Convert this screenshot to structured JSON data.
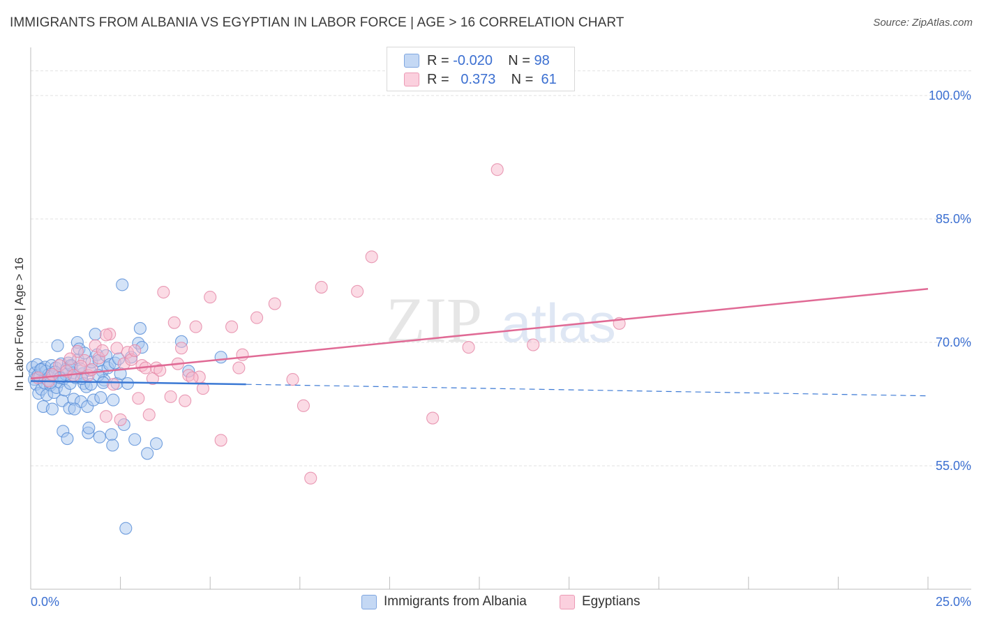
{
  "title": "IMMIGRANTS FROM ALBANIA VS EGYPTIAN IN LABOR FORCE | AGE > 16 CORRELATION CHART",
  "source": "Source: ZipAtlas.com",
  "watermark": {
    "zip": "ZIP",
    "atlas": "atlas"
  },
  "legend_stats": [
    {
      "r_label": "R =",
      "r_value": "-0.020",
      "n_label": "N =",
      "n_value": "98",
      "color": "#aac8f0"
    },
    {
      "r_label": "R =",
      "r_value": "0.373",
      "n_label": "N =",
      "n_value": "61",
      "color": "#f7b8cc"
    }
  ],
  "bottom_legend": [
    {
      "label": "Immigrants from Albania",
      "color": "#aac8f0"
    },
    {
      "label": "Egyptians",
      "color": "#f7b8cc"
    }
  ],
  "chart_data": {
    "type": "scatter",
    "xlabel": "",
    "ylabel": "In Labor Force | Age > 16",
    "xlim": [
      0,
      25
    ],
    "ylim": [
      40,
      105
    ],
    "x_tick_labels": [
      "0.0%",
      "25.0%"
    ],
    "y_ticks": [
      55,
      70,
      85,
      100
    ],
    "y_tick_labels": [
      "55.0%",
      "70.0%",
      "85.0%",
      "100.0%"
    ],
    "grid": true,
    "legend_placement": "top-center",
    "colors": {
      "albania_fill": "#aac8f0",
      "albania_stroke": "#5a8fd8",
      "albania_line": "#3a78d4",
      "egypt_fill": "#f7b8cc",
      "egypt_stroke": "#e58aa8",
      "egypt_line": "#e06a95"
    },
    "series": [
      {
        "name": "Immigrants from Albania",
        "trend": {
          "x": [
            0,
            6,
            25
          ],
          "y": [
            65.3,
            64.9,
            63.5
          ],
          "solid_until": 6
        },
        "points": [
          [
            0.05,
            67.0
          ],
          [
            0.1,
            65.5
          ],
          [
            0.12,
            66.3
          ],
          [
            0.15,
            64.9
          ],
          [
            0.18,
            67.3
          ],
          [
            0.2,
            66.0
          ],
          [
            0.22,
            63.8
          ],
          [
            0.25,
            65.8
          ],
          [
            0.3,
            64.3
          ],
          [
            0.32,
            66.8
          ],
          [
            0.35,
            62.2
          ],
          [
            0.38,
            65.1
          ],
          [
            0.4,
            67.0
          ],
          [
            0.42,
            66.5
          ],
          [
            0.45,
            63.6
          ],
          [
            0.48,
            65.4
          ],
          [
            0.5,
            66.1
          ],
          [
            0.55,
            64.8
          ],
          [
            0.58,
            67.2
          ],
          [
            0.6,
            61.9
          ],
          [
            0.62,
            65.9
          ],
          [
            0.65,
            63.9
          ],
          [
            0.7,
            66.9
          ],
          [
            0.72,
            64.5
          ],
          [
            0.75,
            69.6
          ],
          [
            0.78,
            66.0
          ],
          [
            0.8,
            65.2
          ],
          [
            0.85,
            67.4
          ],
          [
            0.88,
            62.9
          ],
          [
            0.9,
            59.2
          ],
          [
            0.92,
            65.6
          ],
          [
            0.95,
            64.2
          ],
          [
            1.0,
            66.8
          ],
          [
            1.02,
            58.3
          ],
          [
            1.05,
            67.5
          ],
          [
            1.08,
            62.0
          ],
          [
            1.1,
            65.0
          ],
          [
            1.15,
            67.1
          ],
          [
            1.18,
            66.3
          ],
          [
            1.2,
            63.1
          ],
          [
            1.25,
            65.7
          ],
          [
            1.3,
            70.0
          ],
          [
            1.32,
            67.9
          ],
          [
            1.35,
            69.2
          ],
          [
            1.4,
            62.8
          ],
          [
            1.45,
            66.2
          ],
          [
            1.48,
            65.0
          ],
          [
            1.5,
            68.7
          ],
          [
            1.55,
            64.6
          ],
          [
            1.58,
            62.2
          ],
          [
            1.6,
            59.0
          ],
          [
            1.62,
            59.6
          ],
          [
            1.65,
            66.6
          ],
          [
            1.7,
            67.6
          ],
          [
            1.75,
            63.0
          ],
          [
            1.8,
            71.0
          ],
          [
            1.85,
            68.5
          ],
          [
            1.9,
            67.8
          ],
          [
            1.92,
            58.5
          ],
          [
            1.95,
            63.3
          ],
          [
            2.0,
            66.5
          ],
          [
            2.05,
            65.4
          ],
          [
            2.1,
            68.4
          ],
          [
            2.15,
            66.9
          ],
          [
            2.2,
            67.3
          ],
          [
            2.25,
            58.8
          ],
          [
            2.28,
            57.5
          ],
          [
            2.3,
            63.0
          ],
          [
            2.35,
            67.5
          ],
          [
            2.4,
            65.0
          ],
          [
            2.45,
            68.0
          ],
          [
            2.5,
            66.2
          ],
          [
            2.55,
            77.0
          ],
          [
            2.6,
            60.0
          ],
          [
            2.65,
            47.4
          ],
          [
            2.7,
            65.0
          ],
          [
            2.8,
            68.2
          ],
          [
            2.9,
            58.2
          ],
          [
            3.0,
            69.9
          ],
          [
            3.05,
            71.7
          ],
          [
            3.1,
            69.4
          ],
          [
            3.25,
            56.5
          ],
          [
            3.5,
            57.7
          ],
          [
            4.2,
            70.1
          ],
          [
            4.4,
            66.5
          ],
          [
            5.3,
            68.2
          ],
          [
            0.55,
            65.1
          ],
          [
            1.22,
            61.9
          ],
          [
            0.68,
            66.4
          ],
          [
            0.98,
            66.1
          ],
          [
            1.12,
            67.2
          ],
          [
            1.42,
            65.6
          ],
          [
            1.68,
            64.9
          ],
          [
            1.88,
            66.0
          ],
          [
            2.02,
            65.1
          ],
          [
            0.28,
            66.7
          ],
          [
            0.82,
            65.7
          ],
          [
            1.38,
            66.8
          ]
        ]
      },
      {
        "name": "Egyptians",
        "trend": {
          "x": [
            0,
            25
          ],
          "y": [
            65.6,
            76.5
          ],
          "solid_until": 25
        },
        "points": [
          [
            0.2,
            65.7
          ],
          [
            0.5,
            65.3
          ],
          [
            0.8,
            67.2
          ],
          [
            1.0,
            66.5
          ],
          [
            1.2,
            66.0
          ],
          [
            1.3,
            68.9
          ],
          [
            1.5,
            67.8
          ],
          [
            1.6,
            66.0
          ],
          [
            1.7,
            66.7
          ],
          [
            1.8,
            69.6
          ],
          [
            1.9,
            68.1
          ],
          [
            2.0,
            69.0
          ],
          [
            2.1,
            61.0
          ],
          [
            2.2,
            71.0
          ],
          [
            2.3,
            64.9
          ],
          [
            2.4,
            69.3
          ],
          [
            2.5,
            60.6
          ],
          [
            2.6,
            67.4
          ],
          [
            2.7,
            68.8
          ],
          [
            2.8,
            67.9
          ],
          [
            3.0,
            63.2
          ],
          [
            3.1,
            67.2
          ],
          [
            3.2,
            66.9
          ],
          [
            3.3,
            61.2
          ],
          [
            3.4,
            65.6
          ],
          [
            3.5,
            66.9
          ],
          [
            3.7,
            76.1
          ],
          [
            3.9,
            63.4
          ],
          [
            4.0,
            72.4
          ],
          [
            4.1,
            67.4
          ],
          [
            4.2,
            69.3
          ],
          [
            4.3,
            62.9
          ],
          [
            4.4,
            66.0
          ],
          [
            4.6,
            71.9
          ],
          [
            4.7,
            65.8
          ],
          [
            4.8,
            64.4
          ],
          [
            5.0,
            75.5
          ],
          [
            5.3,
            58.1
          ],
          [
            5.6,
            71.9
          ],
          [
            5.9,
            68.5
          ],
          [
            6.3,
            73.0
          ],
          [
            6.8,
            74.7
          ],
          [
            7.3,
            65.5
          ],
          [
            7.6,
            62.3
          ],
          [
            7.8,
            53.5
          ],
          [
            8.1,
            76.7
          ],
          [
            9.1,
            76.2
          ],
          [
            9.5,
            80.4
          ],
          [
            11.2,
            60.8
          ],
          [
            12.2,
            69.4
          ],
          [
            13.0,
            91.0
          ],
          [
            14.0,
            69.7
          ],
          [
            16.4,
            72.3
          ],
          [
            2.1,
            70.9
          ],
          [
            1.4,
            67.1
          ],
          [
            0.6,
            66.1
          ],
          [
            1.1,
            68.0
          ],
          [
            2.9,
            69.0
          ],
          [
            3.6,
            66.6
          ],
          [
            4.5,
            65.7
          ],
          [
            5.8,
            66.9
          ]
        ]
      }
    ]
  }
}
